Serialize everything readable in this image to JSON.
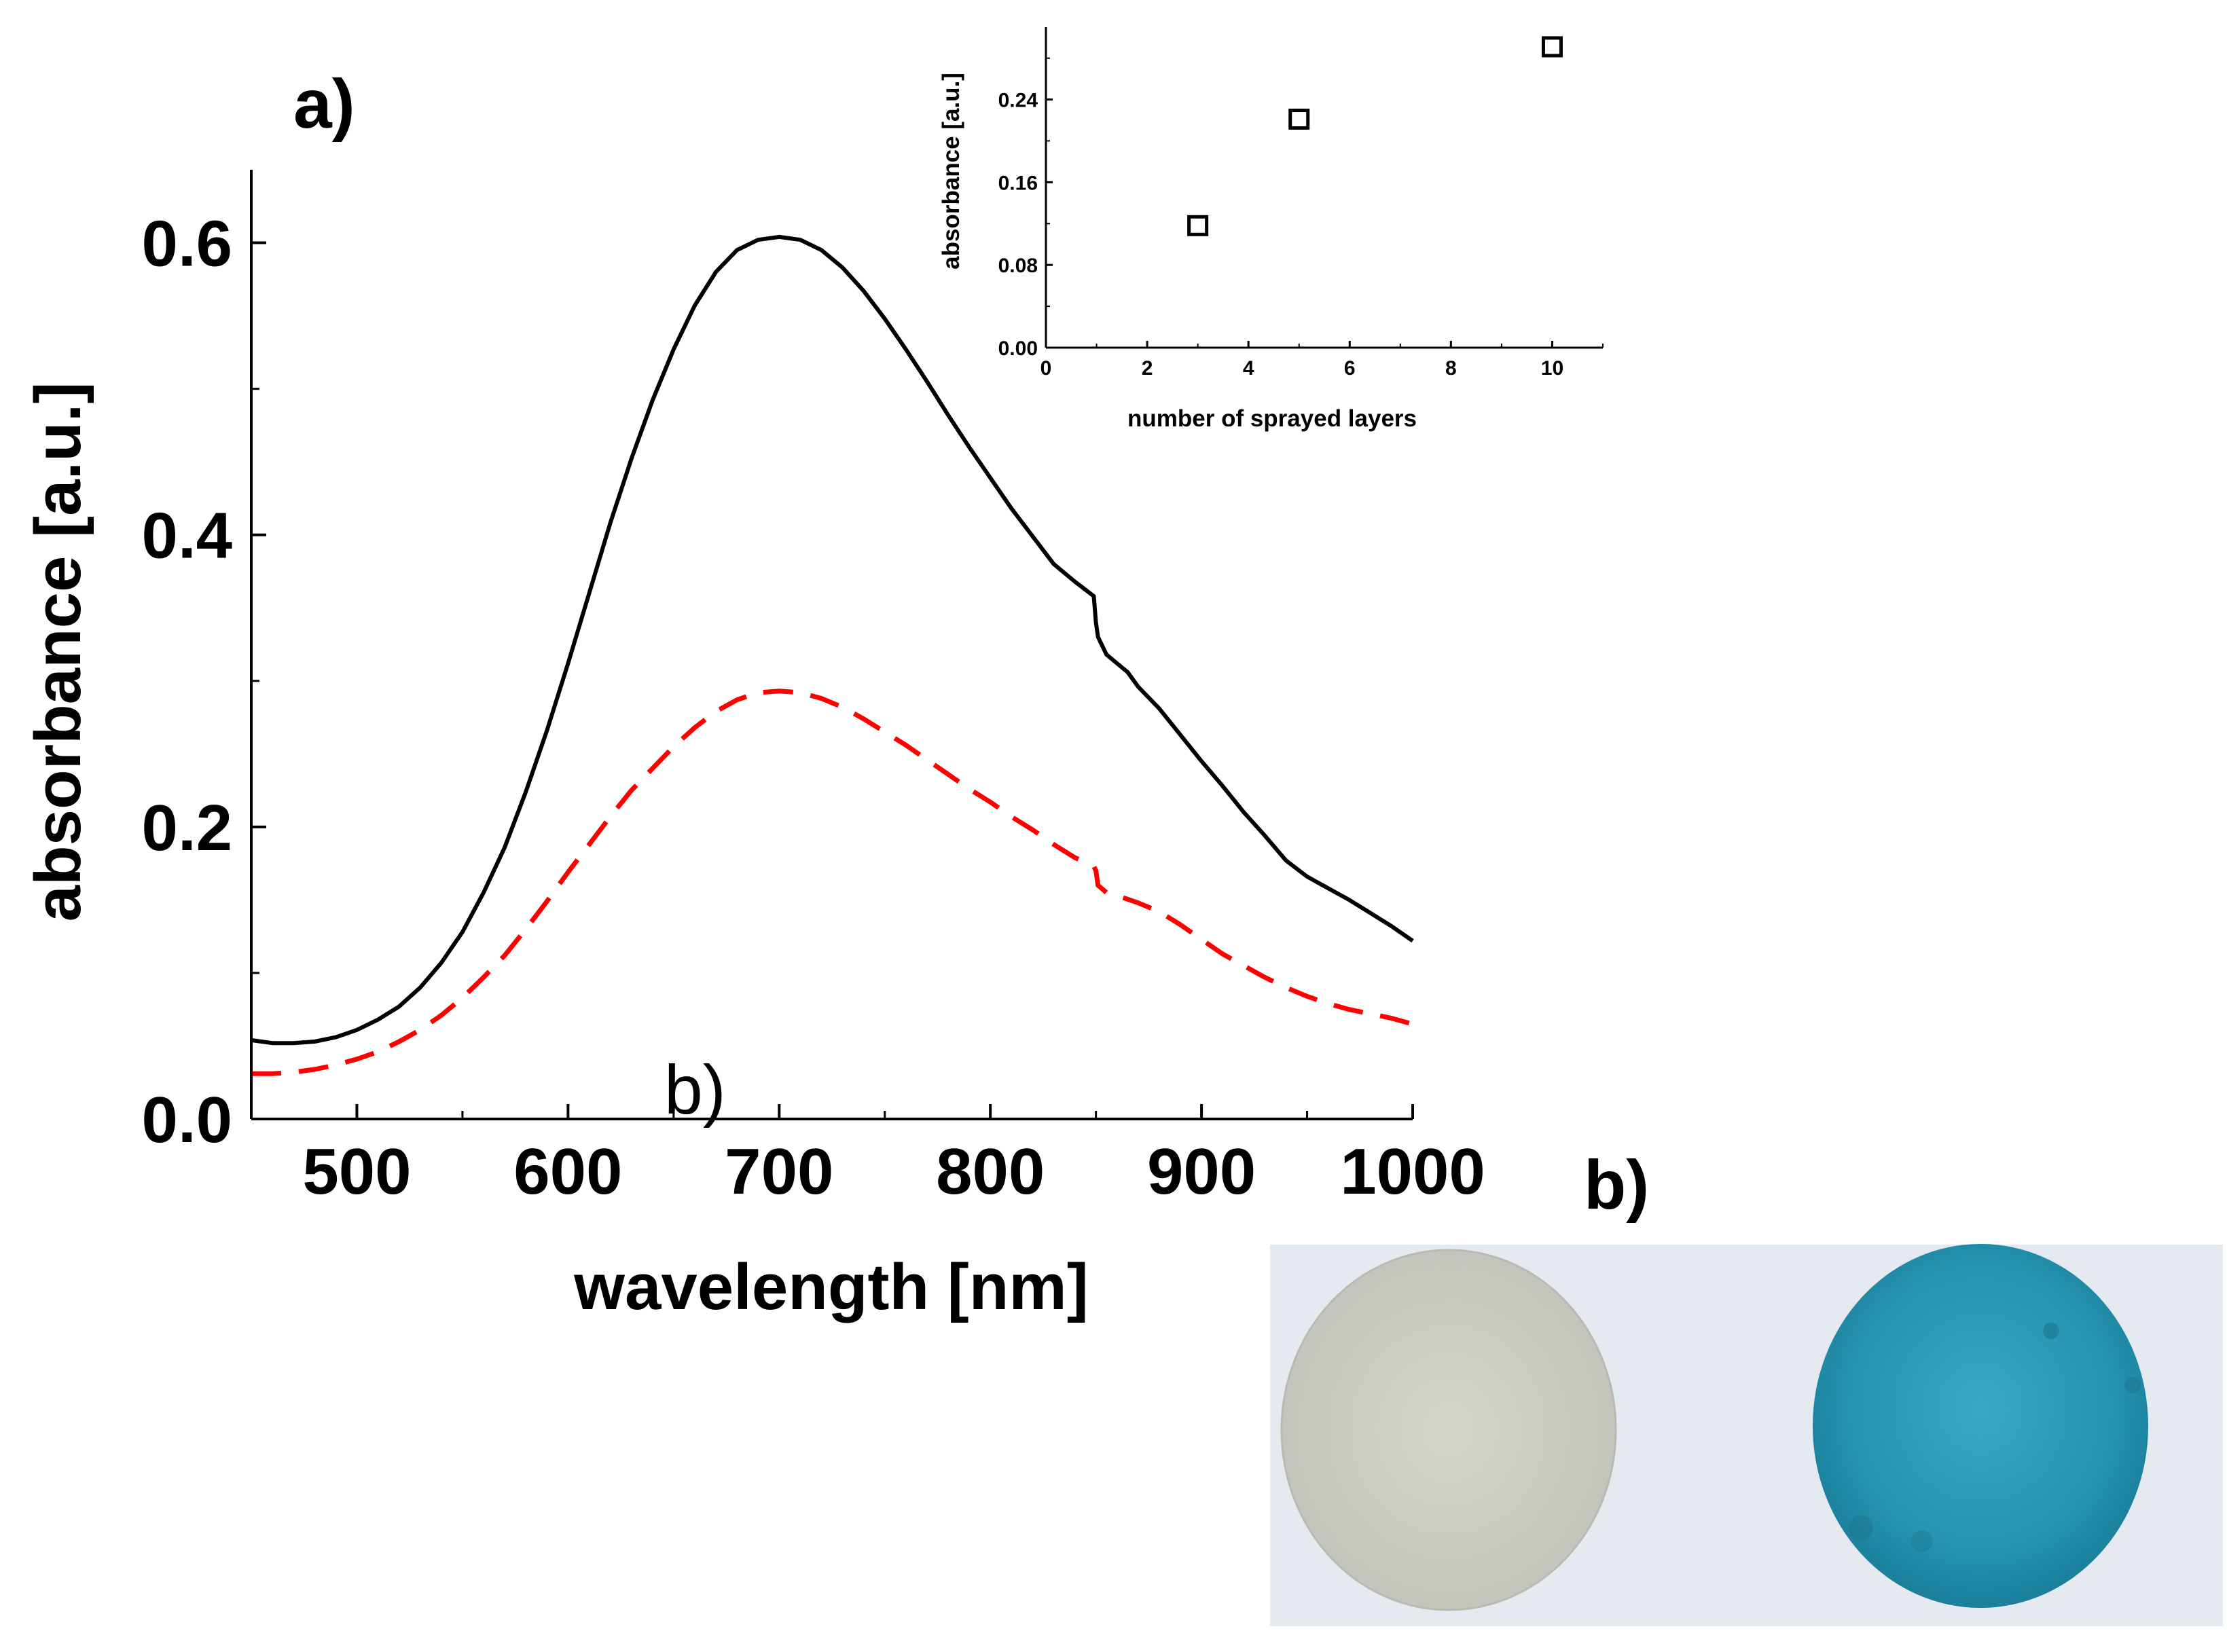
{
  "figure": {
    "panel_a_label": "a)",
    "panel_b_label_overlap": "b)",
    "panel_b_label": "b)"
  },
  "chart_data": [
    {
      "type": "line",
      "xlabel": "wavelength [nm]",
      "ylabel": "absorbance [a.u.]",
      "xlim": [
        450,
        1000
      ],
      "ylim": [
        0,
        0.65
      ],
      "xticks": [
        500,
        600,
        700,
        800,
        900,
        1000
      ],
      "yticks": [
        0.0,
        0.2,
        0.4,
        0.6
      ],
      "xtick_labels": [
        "500",
        "600",
        "700",
        "800",
        "900",
        "1000"
      ],
      "ytick_labels": [
        "0.0",
        "0.2",
        "0.4",
        "0.6"
      ],
      "series": [
        {
          "name": "solid",
          "style": "solid",
          "color": "#000000",
          "x": [
            450,
            460,
            470,
            480,
            490,
            500,
            510,
            520,
            530,
            540,
            550,
            560,
            570,
            580,
            590,
            600,
            610,
            620,
            630,
            640,
            650,
            660,
            670,
            680,
            690,
            700,
            710,
            720,
            730,
            740,
            750,
            760,
            770,
            780,
            790,
            800,
            810,
            820,
            830,
            840,
            849,
            850,
            851,
            855,
            860,
            865,
            870,
            880,
            890,
            900,
            910,
            920,
            930,
            940,
            950,
            960,
            970,
            980,
            990,
            1000
          ],
          "y": [
            0.054,
            0.052,
            0.052,
            0.053,
            0.056,
            0.061,
            0.068,
            0.077,
            0.09,
            0.107,
            0.128,
            0.155,
            0.186,
            0.224,
            0.266,
            0.312,
            0.36,
            0.408,
            0.452,
            0.492,
            0.527,
            0.557,
            0.58,
            0.595,
            0.602,
            0.604,
            0.602,
            0.595,
            0.583,
            0.567,
            0.548,
            0.527,
            0.505,
            0.482,
            0.46,
            0.439,
            0.418,
            0.399,
            0.38,
            0.368,
            0.358,
            0.34,
            0.33,
            0.318,
            0.312,
            0.306,
            0.296,
            0.281,
            0.263,
            0.245,
            0.228,
            0.21,
            0.194,
            0.177,
            0.166,
            0.158,
            0.15,
            0.141,
            0.132,
            0.122
          ]
        },
        {
          "name": "dashed",
          "style": "dashed",
          "color": "#ff0000",
          "x": [
            450,
            460,
            470,
            480,
            490,
            500,
            510,
            520,
            530,
            540,
            550,
            560,
            570,
            580,
            590,
            600,
            610,
            620,
            630,
            640,
            650,
            660,
            670,
            680,
            690,
            700,
            710,
            720,
            730,
            740,
            750,
            760,
            770,
            780,
            790,
            800,
            810,
            820,
            830,
            840,
            849,
            850,
            851,
            855,
            860,
            870,
            880,
            890,
            900,
            910,
            920,
            930,
            940,
            950,
            960,
            970,
            980,
            990,
            1000
          ],
          "y": [
            0.031,
            0.031,
            0.032,
            0.034,
            0.037,
            0.041,
            0.046,
            0.053,
            0.061,
            0.071,
            0.083,
            0.097,
            0.112,
            0.13,
            0.149,
            0.169,
            0.188,
            0.207,
            0.225,
            0.24,
            0.255,
            0.268,
            0.279,
            0.287,
            0.292,
            0.293,
            0.292,
            0.288,
            0.282,
            0.274,
            0.265,
            0.256,
            0.246,
            0.236,
            0.226,
            0.217,
            0.207,
            0.198,
            0.188,
            0.179,
            0.173,
            0.17,
            0.16,
            0.155,
            0.153,
            0.148,
            0.142,
            0.133,
            0.123,
            0.113,
            0.105,
            0.097,
            0.09,
            0.084,
            0.079,
            0.075,
            0.072,
            0.069,
            0.065
          ]
        }
      ]
    },
    {
      "type": "scatter",
      "marker": "open-square",
      "xlabel": "number of sprayed layers",
      "ylabel": "absorbance [a.u.]",
      "xlim": [
        0,
        11
      ],
      "ylim": [
        0,
        0.31
      ],
      "xticks": [
        0,
        2,
        4,
        6,
        8,
        10
      ],
      "yticks": [
        0.0,
        0.08,
        0.16,
        0.24
      ],
      "xtick_labels": [
        "0",
        "2",
        "4",
        "6",
        "8",
        "10"
      ],
      "ytick_labels": [
        "0.00",
        "0.08",
        "0.16",
        "0.24"
      ],
      "x": [
        3,
        5,
        10
      ],
      "y": [
        0.118,
        0.221,
        0.291
      ]
    }
  ],
  "photo": {
    "background_color": "#e8ecf2",
    "left_disc_color": "#cdcfc6",
    "right_disc_color": "#2a9bb7"
  }
}
